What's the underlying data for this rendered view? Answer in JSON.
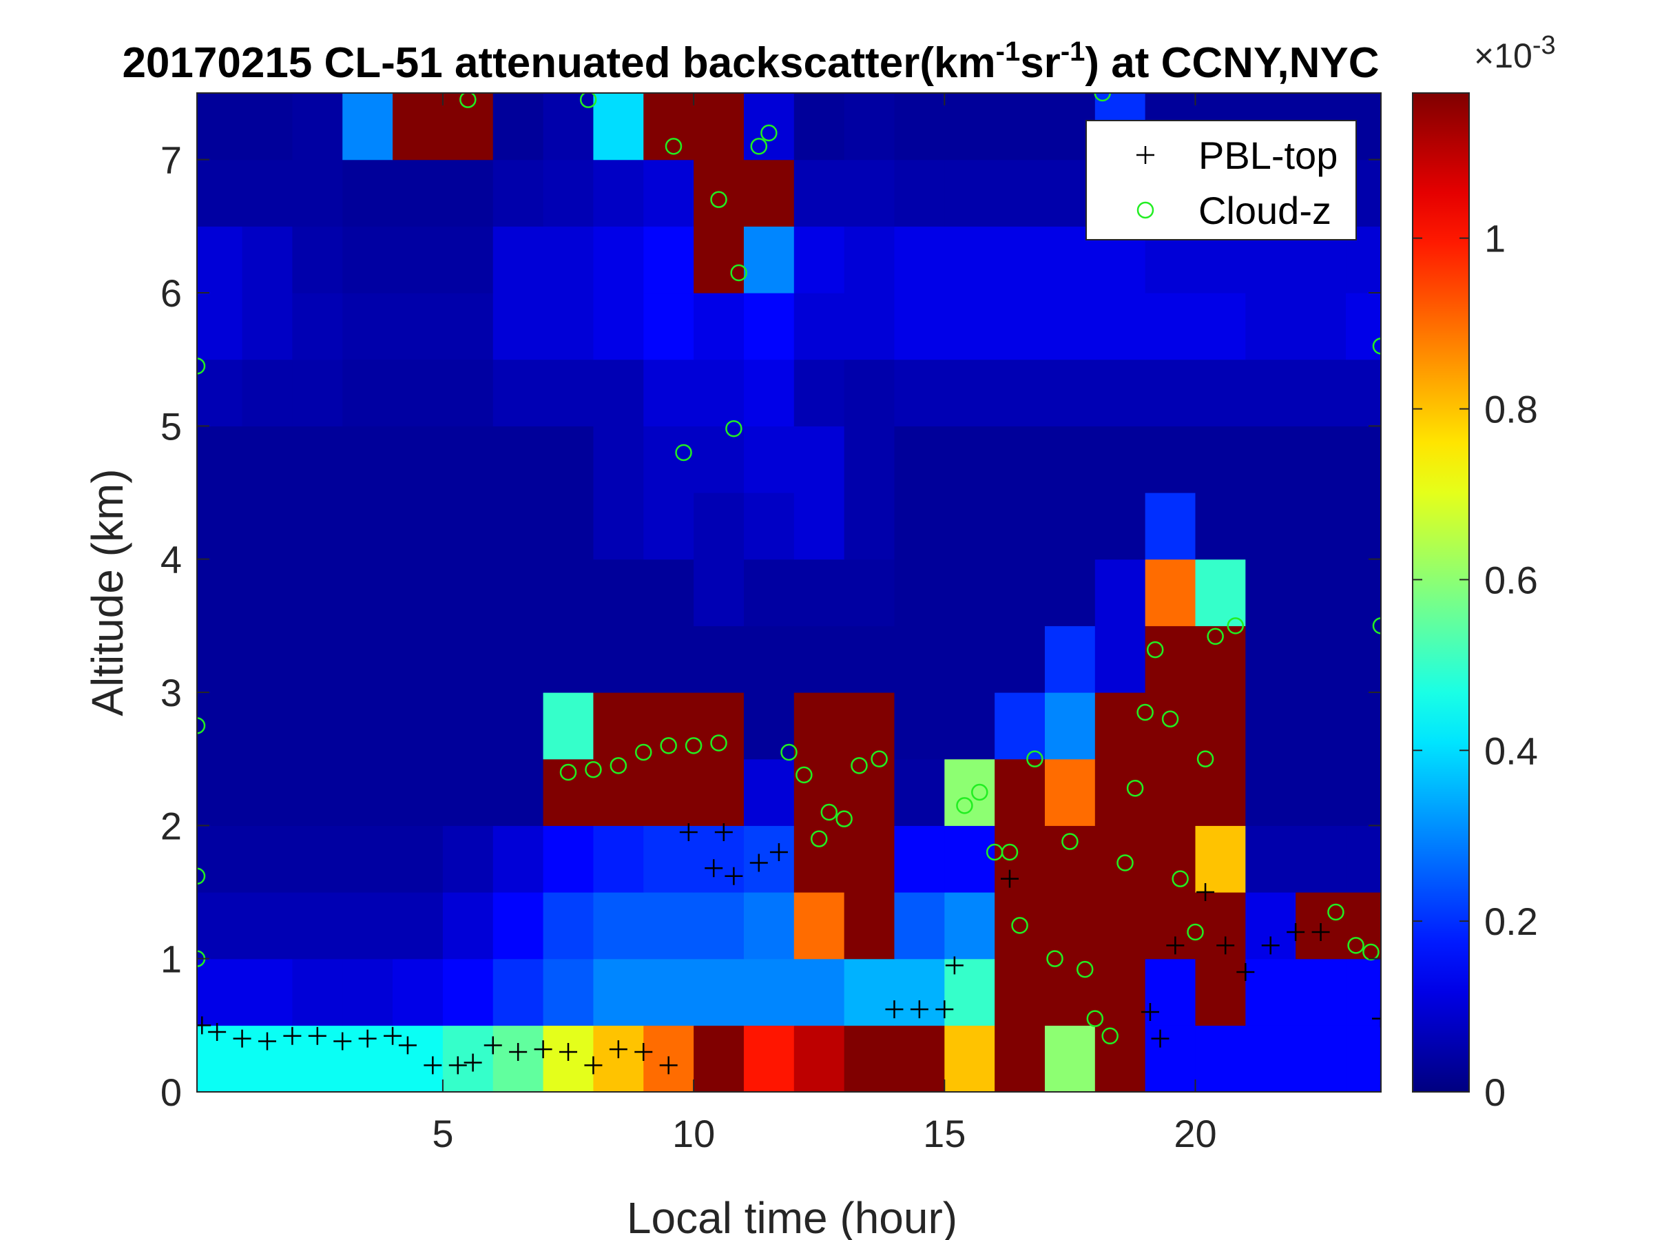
{
  "chart_data": {
    "type": "heatmap",
    "title_parts": [
      "20170215  CL-51 attenuated backscatter(km",
      "-1",
      "sr",
      "-1",
      ") at CCNY,NYC"
    ],
    "xlabel": "Local time (hour)",
    "ylabel": "Altitude (km)",
    "xlim": [
      0.1,
      23.7
    ],
    "ylim": [
      0,
      7.5
    ],
    "xticks": [
      5,
      10,
      15,
      20
    ],
    "yticks": [
      0,
      1,
      2,
      3,
      4,
      5,
      6,
      7
    ],
    "colormap": "jet",
    "clim": [
      0,
      1.17
    ],
    "cticks": [
      0,
      0.2,
      0.4,
      0.6,
      0.8,
      1
    ],
    "colorbar_exponent": [
      "×10",
      "-3"
    ],
    "legend": "northeast",
    "xbins": [
      0,
      1,
      2,
      3,
      4,
      5,
      6,
      7,
      8,
      9,
      10,
      11,
      12,
      13,
      14,
      15,
      16,
      17,
      18,
      19,
      20,
      21,
      22,
      23,
      24
    ],
    "ybins": [
      0,
      0.5,
      1,
      1.5,
      2,
      2.5,
      3,
      3.5,
      4,
      4.5,
      5,
      5.5,
      6,
      6.5,
      7,
      7.5
    ],
    "z": [
      [
        0.45,
        0.45,
        0.45,
        0.45,
        0.45,
        0.5,
        0.55,
        0.7,
        0.8,
        0.9,
        1.17,
        1.0,
        1.1,
        1.17,
        1.17,
        0.8,
        1.17,
        0.6,
        1.17,
        0.15,
        0.15,
        0.15,
        0.15,
        0.15
      ],
      [
        0.12,
        0.12,
        0.1,
        0.1,
        0.12,
        0.15,
        0.2,
        0.25,
        0.3,
        0.3,
        0.3,
        0.3,
        0.3,
        0.35,
        0.35,
        0.5,
        1.17,
        1.17,
        1.17,
        0.15,
        1.17,
        0.15,
        0.15,
        0.15
      ],
      [
        0.06,
        0.06,
        0.06,
        0.06,
        0.06,
        0.1,
        0.15,
        0.22,
        0.25,
        0.25,
        0.25,
        0.28,
        0.9,
        1.17,
        0.25,
        0.3,
        1.17,
        1.17,
        1.17,
        1.17,
        1.17,
        0.12,
        1.17,
        1.17
      ],
      [
        0.04,
        0.04,
        0.04,
        0.04,
        0.04,
        0.06,
        0.1,
        0.15,
        0.18,
        0.2,
        0.2,
        0.22,
        1.17,
        1.17,
        0.15,
        0.15,
        1.17,
        1.17,
        1.17,
        1.17,
        0.8,
        0.05,
        0.05,
        0.05
      ],
      [
        0.03,
        0.03,
        0.03,
        0.03,
        0.03,
        0.03,
        0.03,
        1.17,
        1.17,
        1.17,
        1.17,
        0.1,
        1.17,
        1.17,
        0.04,
        0.6,
        1.17,
        0.9,
        1.17,
        1.17,
        1.17,
        0.03,
        0.03,
        0.03
      ],
      [
        0.03,
        0.03,
        0.03,
        0.03,
        0.03,
        0.03,
        0.03,
        0.5,
        1.17,
        1.17,
        1.17,
        0.03,
        1.17,
        1.17,
        0.03,
        0.03,
        0.2,
        0.3,
        1.17,
        1.17,
        1.17,
        0.03,
        0.03,
        0.03
      ],
      [
        0.03,
        0.03,
        0.03,
        0.03,
        0.03,
        0.03,
        0.03,
        0.03,
        0.03,
        0.03,
        0.03,
        0.03,
        0.03,
        0.03,
        0.03,
        0.03,
        0.03,
        0.2,
        0.1,
        1.17,
        1.17,
        0.03,
        0.03,
        0.03
      ],
      [
        0.03,
        0.03,
        0.03,
        0.03,
        0.03,
        0.03,
        0.03,
        0.03,
        0.03,
        0.03,
        0.06,
        0.04,
        0.04,
        0.04,
        0.03,
        0.03,
        0.03,
        0.03,
        0.1,
        0.9,
        0.5,
        0.03,
        0.03,
        0.03
      ],
      [
        0.03,
        0.03,
        0.03,
        0.03,
        0.03,
        0.03,
        0.03,
        0.03,
        0.06,
        0.08,
        0.06,
        0.08,
        0.1,
        0.05,
        0.03,
        0.03,
        0.03,
        0.03,
        0.03,
        0.2,
        0.03,
        0.03,
        0.03,
        0.03
      ],
      [
        0.03,
        0.03,
        0.03,
        0.03,
        0.03,
        0.03,
        0.03,
        0.03,
        0.06,
        0.08,
        0.08,
        0.1,
        0.1,
        0.05,
        0.03,
        0.03,
        0.03,
        0.03,
        0.03,
        0.03,
        0.03,
        0.03,
        0.03,
        0.03
      ],
      [
        0.06,
        0.05,
        0.05,
        0.04,
        0.04,
        0.04,
        0.06,
        0.06,
        0.06,
        0.1,
        0.1,
        0.12,
        0.06,
        0.05,
        0.06,
        0.06,
        0.06,
        0.06,
        0.06,
        0.06,
        0.06,
        0.06,
        0.06,
        0.06
      ],
      [
        0.1,
        0.08,
        0.06,
        0.05,
        0.05,
        0.05,
        0.1,
        0.1,
        0.12,
        0.15,
        0.12,
        0.15,
        0.1,
        0.1,
        0.12,
        0.12,
        0.12,
        0.12,
        0.12,
        0.12,
        0.12,
        0.1,
        0.1,
        0.12
      ],
      [
        0.1,
        0.08,
        0.05,
        0.04,
        0.04,
        0.04,
        0.1,
        0.1,
        0.12,
        0.15,
        1.17,
        0.3,
        0.12,
        0.1,
        0.12,
        0.12,
        0.12,
        0.12,
        0.12,
        0.1,
        0.1,
        0.1,
        0.1,
        0.1
      ],
      [
        0.04,
        0.04,
        0.04,
        0.03,
        0.03,
        0.03,
        0.05,
        0.06,
        0.08,
        0.1,
        1.17,
        1.17,
        0.06,
        0.06,
        0.05,
        0.05,
        0.05,
        0.05,
        0.05,
        0.05,
        0.05,
        0.05,
        0.05,
        0.05
      ],
      [
        0.03,
        0.03,
        0.04,
        0.3,
        1.17,
        1.17,
        0.03,
        0.05,
        0.4,
        1.17,
        1.17,
        0.1,
        0.03,
        0.04,
        0.03,
        0.03,
        0.03,
        0.03,
        0.2,
        0.03,
        0.03,
        0.03,
        0.03,
        0.03
      ]
    ],
    "series": [
      {
        "name": "PBL-top",
        "marker": "plus",
        "color": "#000000",
        "x": [
          0.2,
          0.5,
          1,
          1.5,
          2,
          2.5,
          3,
          3.5,
          4,
          4.3,
          4.8,
          5.3,
          5.6,
          6,
          6.5,
          7,
          7.5,
          8,
          8.5,
          9,
          9.5,
          9.9,
          10.4,
          10.6,
          10.8,
          11.3,
          11.7,
          14,
          14.5,
          15,
          15.2,
          16.3,
          19.1,
          19.3,
          19.6,
          20.2,
          20.6,
          21,
          21.5,
          22,
          22.5,
          23.7
        ],
        "y": [
          0.5,
          0.45,
          0.4,
          0.38,
          0.42,
          0.42,
          0.38,
          0.4,
          0.42,
          0.35,
          0.2,
          0.2,
          0.22,
          0.35,
          0.3,
          0.32,
          0.3,
          0.2,
          0.32,
          0.3,
          0.2,
          1.95,
          1.68,
          1.95,
          1.62,
          1.72,
          1.8,
          0.62,
          0.62,
          0.62,
          0.95,
          1.6,
          0.6,
          0.4,
          1.1,
          1.5,
          1.1,
          0.9,
          1.1,
          1.2,
          1.2,
          0.55
        ]
      },
      {
        "name": "Cloud-z",
        "marker": "circle",
        "color": "#22ee22",
        "x": [
          5.5,
          7.9,
          9.6,
          10.5,
          10.9,
          11.3,
          11.5,
          9.8,
          10.8,
          7.5,
          8,
          8.5,
          9,
          9.5,
          10,
          10.5,
          11.9,
          12.2,
          12.5,
          12.7,
          13,
          13.3,
          13.7,
          15.4,
          15.7,
          16,
          16.3,
          16.5,
          16.8,
          17.2,
          17.5,
          17.8,
          18,
          18.3,
          18.6,
          18.8,
          19,
          19.2,
          19.5,
          19.7,
          20,
          20.2,
          20.4,
          20.8,
          22.8,
          23.2,
          23.5,
          23.7,
          23.7,
          0.1,
          0.1,
          0.1,
          0.1,
          18.15
        ],
        "y": [
          7.45,
          7.45,
          7.1,
          6.7,
          6.15,
          7.1,
          7.2,
          4.8,
          4.98,
          2.4,
          2.42,
          2.45,
          2.55,
          2.6,
          2.6,
          2.62,
          2.55,
          2.38,
          1.9,
          2.1,
          2.05,
          2.45,
          2.5,
          2.15,
          2.25,
          1.8,
          1.8,
          1.25,
          2.5,
          1.0,
          1.88,
          0.92,
          0.55,
          0.42,
          1.72,
          2.28,
          2.85,
          3.32,
          2.8,
          1.6,
          1.2,
          2.5,
          3.42,
          3.5,
          1.35,
          1.1,
          1.05,
          5.6,
          3.5,
          5.45,
          2.75,
          1.0,
          1.62,
          7.5
        ]
      }
    ]
  }
}
